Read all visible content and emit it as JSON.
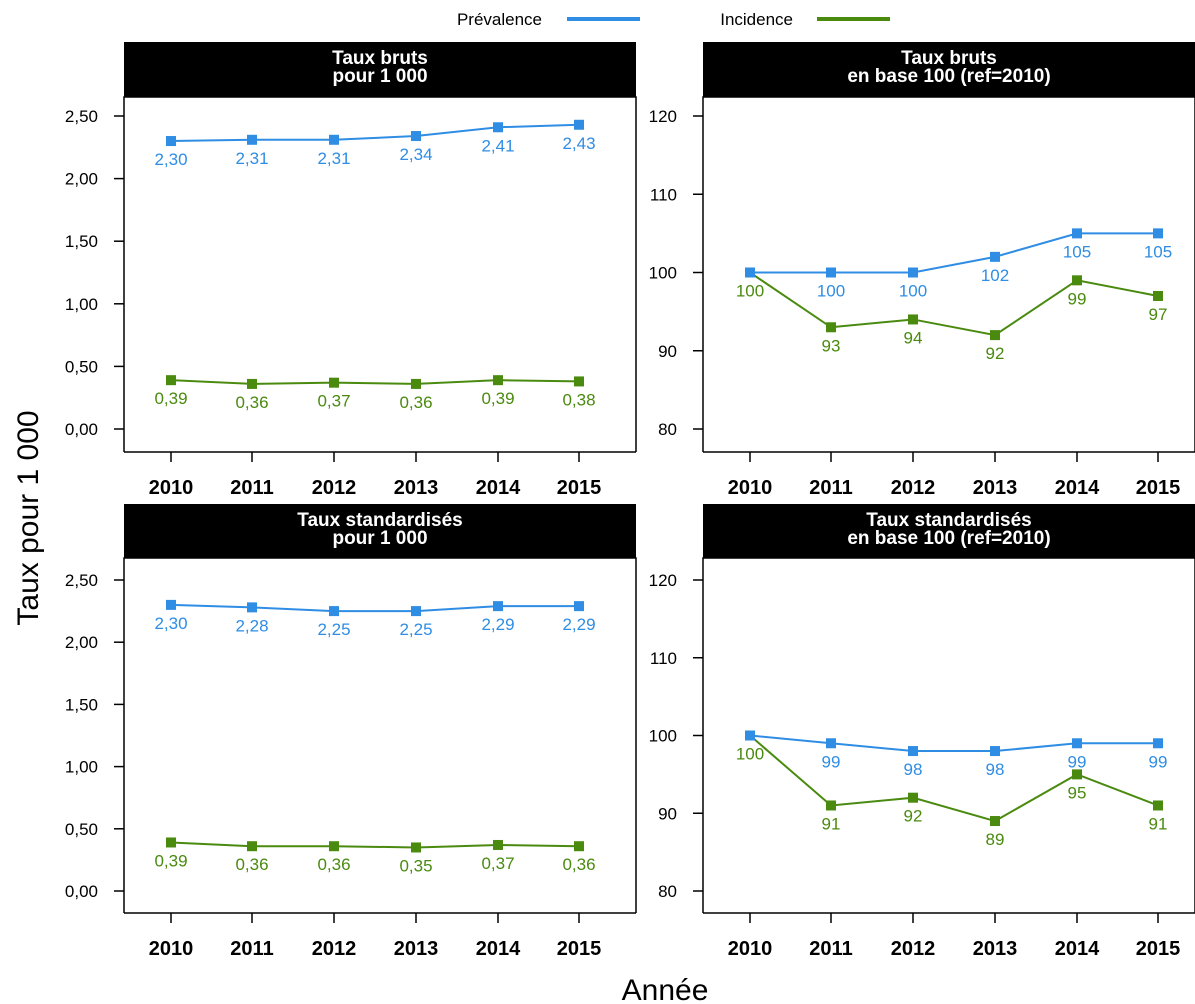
{
  "figure": {
    "ylabel": "Taux pour 1 000",
    "xlabel": "Année"
  },
  "legend": [
    {
      "name": "Prévalence",
      "color": "#2f8de4"
    },
    {
      "name": "Incidence",
      "color": "#4a8a0f"
    }
  ],
  "chart_data": [
    {
      "type": "line",
      "title": "Taux bruts\npour 1 000",
      "x": [
        "2010",
        "2011",
        "2012",
        "2013",
        "2014",
        "2015"
      ],
      "ylim": [
        0,
        2.5
      ],
      "yticks": [
        "0,00",
        "0,50",
        "1,00",
        "1,50",
        "2,00",
        "2,50"
      ],
      "series": [
        {
          "name": "Prévalence",
          "values": [
            2.3,
            2.31,
            2.31,
            2.34,
            2.41,
            2.43
          ],
          "labels": [
            "2,30",
            "2,31",
            "2,31",
            "2,34",
            "2,41",
            "2,43"
          ]
        },
        {
          "name": "Incidence",
          "values": [
            0.39,
            0.36,
            0.37,
            0.36,
            0.39,
            0.38
          ],
          "labels": [
            "0,39",
            "0,36",
            "0,37",
            "0,36",
            "0,39",
            "0,38"
          ]
        }
      ]
    },
    {
      "type": "line",
      "title": "Taux bruts\nen base 100 (ref=2010)",
      "x": [
        "2010",
        "2011",
        "2012",
        "2013",
        "2014",
        "2015"
      ],
      "ylim": [
        80,
        120
      ],
      "yticks": [
        "80",
        "90",
        "100",
        "110",
        "120"
      ],
      "series": [
        {
          "name": "Prévalence",
          "values": [
            100,
            100,
            100,
            102,
            105,
            105
          ],
          "labels": [
            "",
            "100",
            "100",
            "102",
            "105",
            "105"
          ]
        },
        {
          "name": "Incidence",
          "values": [
            100,
            93,
            94,
            92,
            99,
            97
          ],
          "labels": [
            "100",
            "93",
            "94",
            "92",
            "99",
            "97"
          ]
        }
      ]
    },
    {
      "type": "line",
      "title": "Taux standardisés\npour 1 000",
      "x": [
        "2010",
        "2011",
        "2012",
        "2013",
        "2014",
        "2015"
      ],
      "ylim": [
        0,
        2.5
      ],
      "yticks": [
        "0,00",
        "0,50",
        "1,00",
        "1,50",
        "2,00",
        "2,50"
      ],
      "series": [
        {
          "name": "Prévalence",
          "values": [
            2.3,
            2.28,
            2.25,
            2.25,
            2.29,
            2.29
          ],
          "labels": [
            "2,30",
            "2,28",
            "2,25",
            "2,25",
            "2,29",
            "2,29"
          ]
        },
        {
          "name": "Incidence",
          "values": [
            0.39,
            0.36,
            0.36,
            0.35,
            0.37,
            0.36
          ],
          "labels": [
            "0,39",
            "0,36",
            "0,36",
            "0,35",
            "0,37",
            "0,36"
          ]
        }
      ]
    },
    {
      "type": "line",
      "title": "Taux standardisés\nen base 100 (ref=2010)",
      "x": [
        "2010",
        "2011",
        "2012",
        "2013",
        "2014",
        "2015"
      ],
      "ylim": [
        80,
        120
      ],
      "yticks": [
        "80",
        "90",
        "100",
        "110",
        "120"
      ],
      "series": [
        {
          "name": "Prévalence",
          "values": [
            100,
            99,
            98,
            98,
            99,
            99
          ],
          "labels": [
            "",
            "99",
            "98",
            "98",
            "99",
            "99"
          ]
        },
        {
          "name": "Incidence",
          "values": [
            100,
            91,
            92,
            89,
            95,
            91
          ],
          "labels": [
            "100",
            "91",
            "92",
            "89",
            "95",
            "91"
          ]
        }
      ]
    }
  ]
}
